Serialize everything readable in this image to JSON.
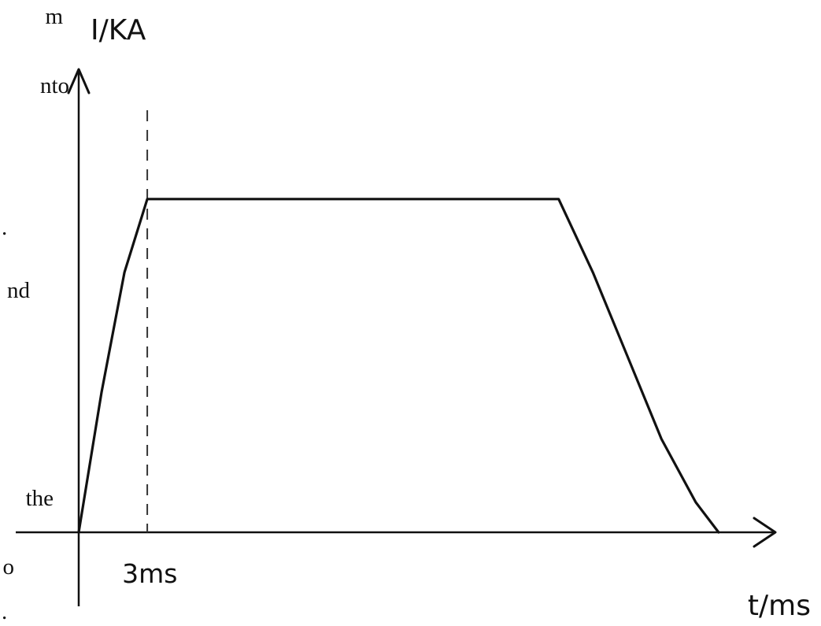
{
  "left_text_fragments": [
    "m",
    "nto",
    ".",
    "nd",
    "the",
    "o",
    "."
  ],
  "chart_data": {
    "type": "line",
    "title": "",
    "xlabel": "t/ms",
    "ylabel": "I/KA",
    "x_ticks": [
      {
        "value": 3,
        "label": "3ms"
      }
    ],
    "series": [
      {
        "x": [
          0,
          1.0,
          2.0,
          3.0,
          21.0,
          22.5,
          24.0,
          25.5,
          27.0,
          28.0
        ],
        "y": [
          0,
          0.42,
          0.78,
          1.0,
          1.0,
          0.78,
          0.53,
          0.28,
          0.09,
          0
        ]
      }
    ],
    "guide_line": {
      "x": 3,
      "style": "dashed"
    },
    "xlim": [
      0,
      31
    ],
    "ylim": [
      0,
      1.55
    ],
    "y_scale": "arbitrary, no tick values printed",
    "grid": false,
    "legend": "none",
    "colors": {
      "ink": "#111111",
      "background": "#ffffff"
    }
  }
}
